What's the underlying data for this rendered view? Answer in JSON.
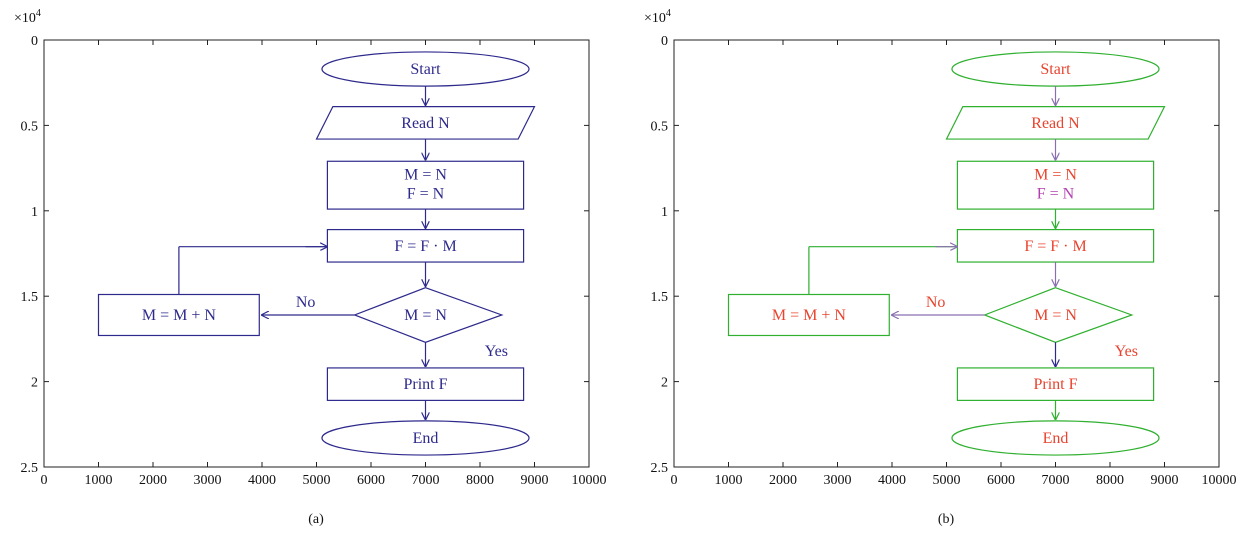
{
  "axis": {
    "exponent_label": "×10",
    "exponent_power": "4",
    "x_ticks": [
      "0",
      "1000",
      "2000",
      "3000",
      "4000",
      "5000",
      "6000",
      "7000",
      "8000",
      "9000",
      "10000"
    ],
    "y_ticks": [
      "0",
      "0.5",
      "1",
      "1.5",
      "2",
      "2.5"
    ],
    "xlim": [
      0,
      10000
    ],
    "ylim": [
      0,
      2.5
    ]
  },
  "panels": [
    {
      "caption": "(a)",
      "colors": {
        "shape": "#2e2a8c",
        "arrow": "#2e2a8c",
        "text": "#2e2a8c",
        "text_alt": "#2e2a8c"
      },
      "nodes": {
        "start": "Start",
        "read": "Read N",
        "init_line1": "M = N",
        "init_line2": "F = N",
        "update_f": "F = F · M",
        "decision": "M = N",
        "update_m": "M = M + N",
        "print": "Print F",
        "end": "End"
      },
      "labels": {
        "no": "No",
        "yes": "Yes"
      }
    },
    {
      "caption": "(b)",
      "colors": {
        "shape": "#2fb02f",
        "arrow": "#8a6fb0",
        "text": "#e8432e",
        "text_alt": "#b23fb0"
      },
      "nodes": {
        "start": "Start",
        "read": "Read N",
        "init_line1": "M = N",
        "init_line2": "F = N",
        "update_f": "F = F · M",
        "decision": "M = N",
        "update_m": "M = M + N",
        "print": "Print F",
        "end": "End"
      },
      "labels": {
        "no": "No",
        "yes": "Yes"
      }
    }
  ]
}
